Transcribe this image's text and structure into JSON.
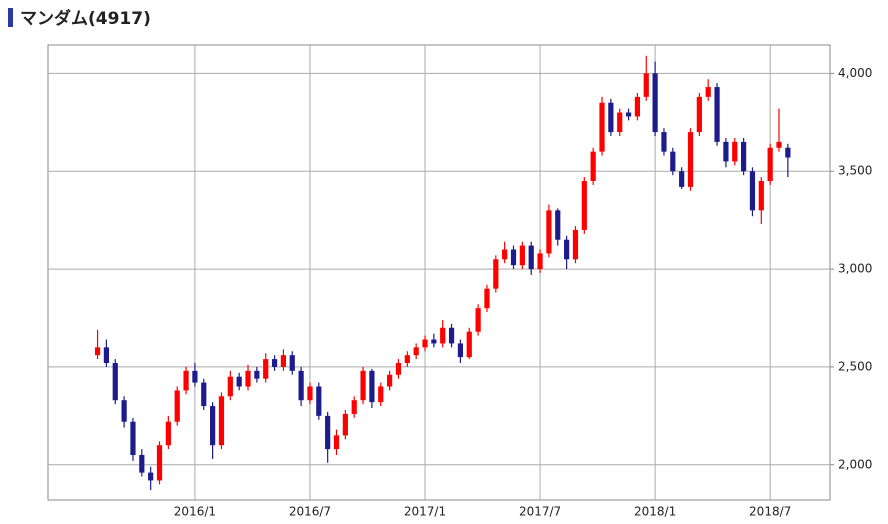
{
  "chart_data": {
    "type": "candlestick",
    "title": "マンダム(4917)",
    "categories": [
      null,
      null,
      null,
      null,
      null,
      null,
      null,
      null,
      null,
      null,
      null,
      "2016/1",
      null,
      null,
      null,
      null,
      null,
      null,
      null,
      null,
      null,
      null,
      null,
      null,
      "2016/7",
      null,
      null,
      null,
      null,
      null,
      null,
      null,
      null,
      null,
      null,
      null,
      null,
      "2017/1",
      null,
      null,
      null,
      null,
      null,
      null,
      null,
      null,
      null,
      null,
      null,
      null,
      "2017/7",
      null,
      null,
      null,
      null,
      null,
      null,
      null,
      null,
      null,
      null,
      null,
      null,
      "2018/1",
      null,
      null,
      null,
      null,
      null,
      null,
      null,
      null,
      null,
      null,
      null,
      null,
      "2018/7",
      null,
      null
    ],
    "open": [
      2560,
      2600,
      2520,
      2330,
      2220,
      2050,
      1960,
      1920,
      2100,
      2220,
      2380,
      2480,
      2420,
      2300,
      2100,
      2350,
      2450,
      2400,
      2480,
      2440,
      2540,
      2500,
      2560,
      2480,
      2330,
      2400,
      2250,
      2080,
      2150,
      2260,
      2330,
      2480,
      2320,
      2400,
      2460,
      2520,
      2560,
      2600,
      2640,
      2620,
      2700,
      2620,
      2550,
      2680,
      2800,
      2900,
      3050,
      3100,
      3020,
      3120,
      3000,
      3080,
      3300,
      3150,
      3050,
      3200,
      3450,
      3600,
      3850,
      3700,
      3800,
      3780,
      3880,
      4000,
      3700,
      3600,
      3500,
      3420,
      3700,
      3880,
      3930,
      3650,
      3550,
      3650,
      3500,
      3300,
      3450,
      3620,
      3620
    ],
    "high": [
      2690,
      2640,
      2540,
      2350,
      2240,
      2080,
      1990,
      2120,
      2250,
      2400,
      2500,
      2520,
      2440,
      2320,
      2370,
      2480,
      2470,
      2510,
      2500,
      2570,
      2560,
      2590,
      2580,
      2500,
      2420,
      2420,
      2270,
      2180,
      2280,
      2350,
      2500,
      2490,
      2420,
      2480,
      2540,
      2580,
      2620,
      2660,
      2670,
      2740,
      2720,
      2640,
      2700,
      2820,
      2920,
      3070,
      3140,
      3120,
      3140,
      3140,
      3100,
      3330,
      3310,
      3170,
      3220,
      3470,
      3620,
      3880,
      3870,
      3820,
      3820,
      3900,
      4090,
      4060,
      3720,
      3620,
      3520,
      3720,
      3900,
      3970,
      3950,
      3670,
      3670,
      3670,
      3520,
      3470,
      3640,
      3820,
      3640
    ],
    "low": [
      2540,
      2500,
      2310,
      2190,
      2020,
      1940,
      1870,
      1900,
      2080,
      2200,
      2360,
      2400,
      2280,
      2030,
      2080,
      2330,
      2380,
      2380,
      2420,
      2420,
      2480,
      2480,
      2460,
      2300,
      2310,
      2230,
      2010,
      2050,
      2130,
      2240,
      2310,
      2290,
      2300,
      2380,
      2440,
      2500,
      2540,
      2580,
      2600,
      2600,
      2600,
      2520,
      2540,
      2660,
      2780,
      2880,
      3030,
      3000,
      3000,
      2970,
      2980,
      3060,
      3120,
      3000,
      3030,
      3180,
      3430,
      3580,
      3680,
      3680,
      3760,
      3760,
      3860,
      3680,
      3580,
      3480,
      3410,
      3400,
      3680,
      3860,
      3630,
      3520,
      3530,
      3480,
      3270,
      3230,
      3430,
      3600,
      3470
    ],
    "close": [
      2600,
      2520,
      2330,
      2220,
      2050,
      1960,
      1920,
      2100,
      2220,
      2380,
      2480,
      2420,
      2300,
      2100,
      2350,
      2450,
      2400,
      2480,
      2440,
      2540,
      2500,
      2560,
      2480,
      2330,
      2400,
      2250,
      2080,
      2150,
      2260,
      2330,
      2480,
      2320,
      2400,
      2460,
      2520,
      2560,
      2600,
      2640,
      2620,
      2700,
      2620,
      2550,
      2680,
      2800,
      2900,
      3050,
      3100,
      3020,
      3120,
      3000,
      3080,
      3300,
      3150,
      3050,
      3200,
      3450,
      3600,
      3850,
      3700,
      3800,
      3780,
      3880,
      4000,
      3700,
      3600,
      3500,
      3420,
      3700,
      3880,
      3930,
      3650,
      3550,
      3650,
      3500,
      3300,
      3450,
      3620,
      3650,
      3570
    ],
    "up_color": "#ff0000",
    "down_color": "#1c1c8c",
    "ylim": [
      1820,
      4145
    ],
    "yticks": [
      {
        "value": 2000,
        "label": "2,000"
      },
      {
        "value": 2500,
        "label": "2,500"
      },
      {
        "value": 3000,
        "label": "3,000"
      },
      {
        "value": 3500,
        "label": "3,500"
      },
      {
        "value": 4000,
        "label": "4,000"
      }
    ],
    "grid": true
  }
}
